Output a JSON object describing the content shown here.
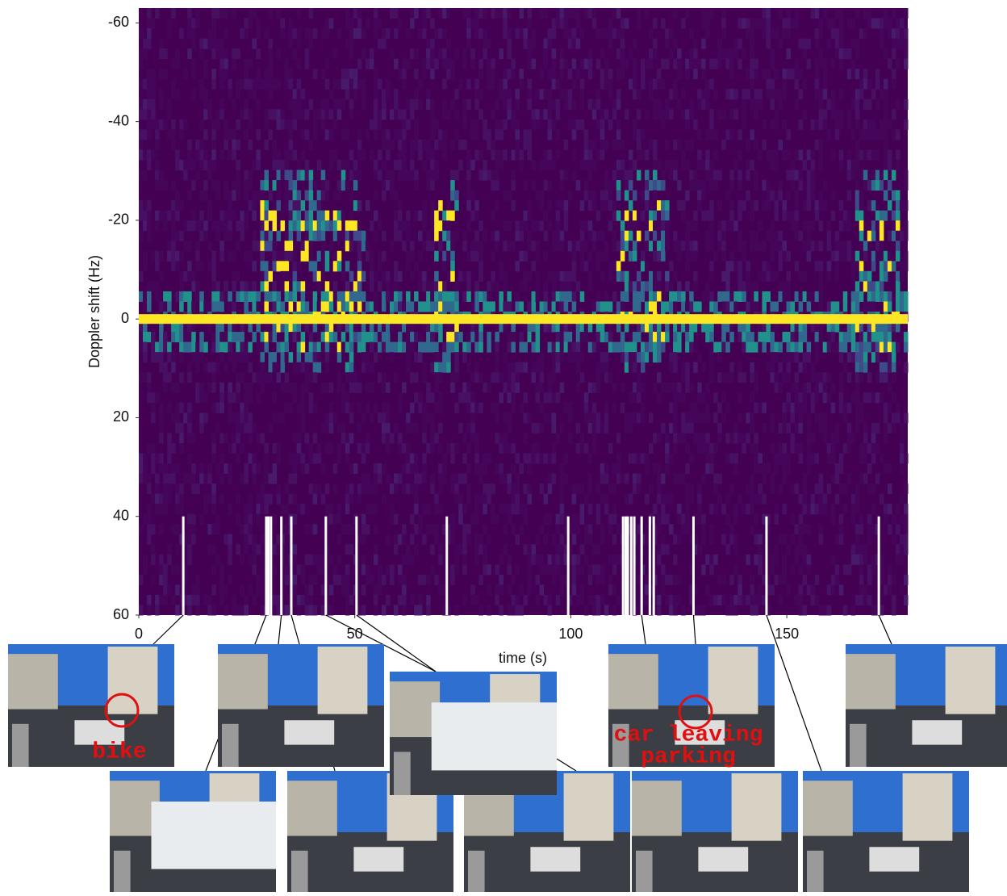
{
  "chart_data": {
    "type": "spectrogram",
    "xlabel": "time (s)",
    "ylabel": "Doppler shift (Hz)",
    "xlim": [
      0,
      178
    ],
    "xticks": [
      0,
      50,
      100,
      150
    ],
    "ylim": [
      -63,
      60
    ],
    "yticks": [
      -60,
      -40,
      -20,
      0,
      20,
      40,
      60
    ],
    "y_inverted": true,
    "events": [
      10.3,
      29.5,
      30.0,
      30.6,
      33.0,
      35.3,
      43.3,
      50.4,
      71.3,
      99.4,
      112.1,
      112.7,
      113.2,
      114.0,
      114.7,
      116.4,
      118.3,
      119.2,
      128.4,
      145.3,
      171.3
    ],
    "event_range": [
      40,
      60
    ],
    "event_color": "#ffffff",
    "annotations": [
      "bike",
      "car leaving",
      "parking"
    ]
  }
}
